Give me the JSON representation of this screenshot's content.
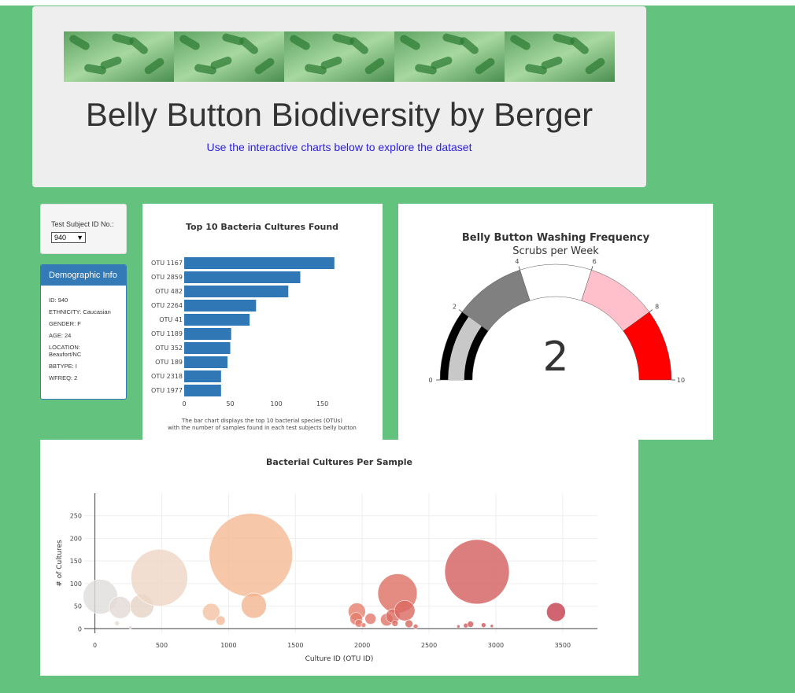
{
  "header": {
    "title": "Belly Button Biodiversity by Berger",
    "subtitle": "Use the interactive charts below to explore the dataset"
  },
  "selector": {
    "label": "Test Subject ID No.:",
    "selected": "940"
  },
  "demographics": {
    "heading": "Demographic Info",
    "lines": [
      "ID: 940",
      "ETHNICITY: Caucasian",
      "GENDER: F",
      "AGE: 24",
      "LOCATION: Beaufort/NC",
      "BBTYPE: I",
      "WFREQ: 2"
    ]
  },
  "colors": {
    "background": "#63c37e",
    "jumbotron": "#eeeeee",
    "panel_heading": "#337ab7",
    "bar": "#2f78b5",
    "subtitle_link": "#2b1fdc"
  },
  "chart_data": [
    {
      "type": "bar",
      "orientation": "horizontal",
      "title": "Top 10 Bacteria Cultures Found",
      "categories": [
        "OTU 1167",
        "OTU 2859",
        "OTU 482",
        "OTU 2264",
        "OTU 41",
        "OTU 1189",
        "OTU 352",
        "OTU 189",
        "OTU 2318",
        "OTU 1977"
      ],
      "values": [
        163,
        126,
        113,
        78,
        71,
        51,
        50,
        47,
        40,
        40
      ],
      "xticks": [
        "0",
        "50",
        "100",
        "150"
      ],
      "xlim": [
        0,
        170
      ],
      "caption_lines": [
        "The bar chart displays the top 10 bacterial species (OTUs)",
        "with the number of samples found in each test subjects belly button"
      ]
    },
    {
      "type": "gauge",
      "title": "Belly Button Washing Frequency",
      "subtitle": "Scrubs per Week",
      "value": 2,
      "value_label": "2",
      "range": [
        0,
        10
      ],
      "tick_labels": [
        "0",
        "2",
        "4",
        "6",
        "8",
        "10"
      ],
      "steps": [
        {
          "from": 0,
          "to": 2,
          "color": "#000000"
        },
        {
          "from": 2,
          "to": 4,
          "color": "#808080"
        },
        {
          "from": 4,
          "to": 6,
          "color": "#ffffff"
        },
        {
          "from": 6,
          "to": 8,
          "color": "#ffc0cb"
        },
        {
          "from": 8,
          "to": 10,
          "color": "#ff0000"
        }
      ],
      "bar_color": "#c8c8c8"
    },
    {
      "type": "scatter",
      "subtype": "bubble",
      "title": "Bacterial Cultures Per Sample",
      "xlabel": "Culture ID (OTU ID)",
      "ylabel": "# of Cultures",
      "xlim": [
        -80,
        3760
      ],
      "ylim": [
        -10,
        300
      ],
      "xticks": [
        0,
        500,
        1000,
        1500,
        2000,
        2500,
        3000,
        3500
      ],
      "yticks": [
        0,
        50,
        100,
        150,
        200,
        250
      ],
      "points": [
        {
          "x": 41,
          "y": 71,
          "r": 22,
          "color": "#e0dcdc"
        },
        {
          "x": 189,
          "y": 47,
          "r": 14,
          "color": "#e3d9d4"
        },
        {
          "x": 165,
          "y": 12,
          "r": 3,
          "color": "#e6dad4"
        },
        {
          "x": 265,
          "y": 3,
          "r": 2,
          "color": "#e6dad4"
        },
        {
          "x": 352,
          "y": 50,
          "r": 15,
          "color": "#e6d3c6"
        },
        {
          "x": 482,
          "y": 113,
          "r": 36,
          "color": "#eed6c4"
        },
        {
          "x": 870,
          "y": 37,
          "r": 11,
          "color": "#f2c2a2"
        },
        {
          "x": 940,
          "y": 18,
          "r": 6,
          "color": "#f2bc9b"
        },
        {
          "x": 1167,
          "y": 163,
          "r": 53,
          "color": "#f5b993"
        },
        {
          "x": 1189,
          "y": 51,
          "r": 16,
          "color": "#f3b48e"
        },
        {
          "x": 1960,
          "y": 38,
          "r": 11,
          "color": "#e57f6d"
        },
        {
          "x": 1955,
          "y": 22,
          "r": 8,
          "color": "#e37c6b"
        },
        {
          "x": 1975,
          "y": 12,
          "r": 5,
          "color": "#e27b6a"
        },
        {
          "x": 2011,
          "y": 8,
          "r": 3,
          "color": "#e17a69"
        },
        {
          "x": 2062,
          "y": 22,
          "r": 7,
          "color": "#e1786b"
        },
        {
          "x": 2184,
          "y": 20,
          "r": 8,
          "color": "#df7569"
        },
        {
          "x": 2264,
          "y": 78,
          "r": 25,
          "color": "#dd6f62"
        },
        {
          "x": 2230,
          "y": 28,
          "r": 9,
          "color": "#db6c62"
        },
        {
          "x": 2318,
          "y": 40,
          "r": 13,
          "color": "#db6960"
        },
        {
          "x": 2245,
          "y": 12,
          "r": 4,
          "color": "#da6a60"
        },
        {
          "x": 2350,
          "y": 11,
          "r": 5,
          "color": "#d8655e"
        },
        {
          "x": 2400,
          "y": 5,
          "r": 3,
          "color": "#d8655e"
        },
        {
          "x": 2859,
          "y": 126,
          "r": 41,
          "color": "#d45e5e"
        },
        {
          "x": 2720,
          "y": 5,
          "r": 2,
          "color": "#d15c5c"
        },
        {
          "x": 2775,
          "y": 7,
          "r": 3,
          "color": "#d15a5b"
        },
        {
          "x": 2810,
          "y": 10,
          "r": 4,
          "color": "#d0595a"
        },
        {
          "x": 2908,
          "y": 8,
          "r": 3,
          "color": "#ce5659"
        },
        {
          "x": 2970,
          "y": 6,
          "r": 2,
          "color": "#cd5558"
        },
        {
          "x": 3450,
          "y": 37,
          "r": 12,
          "color": "#c43e4e"
        }
      ]
    }
  ]
}
